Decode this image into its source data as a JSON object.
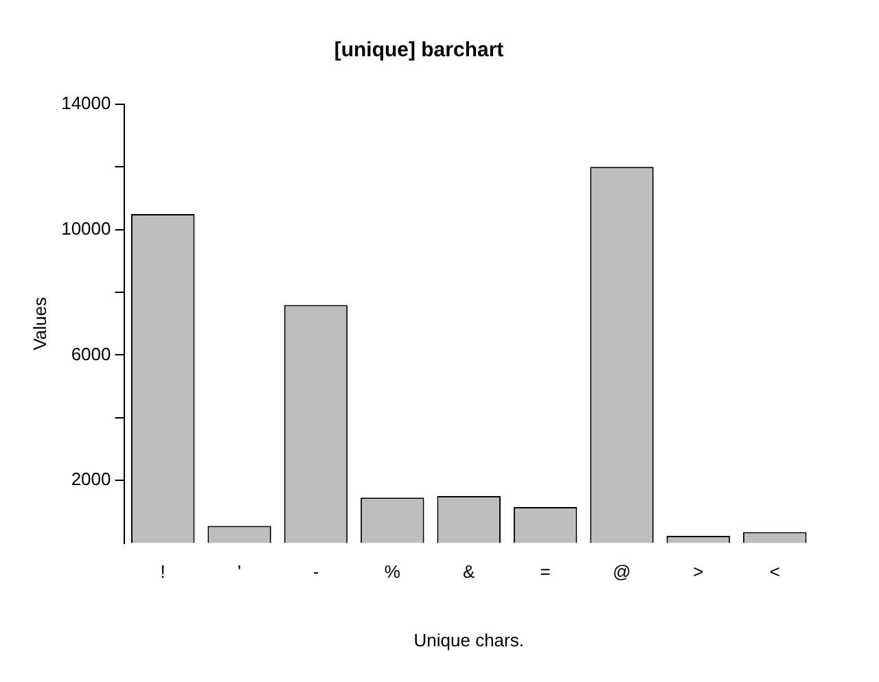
{
  "chart_data": {
    "type": "bar",
    "title": "[unique] barchart",
    "xlabel": "Unique chars.",
    "ylabel": "Values",
    "categories": [
      "!",
      "'",
      "-",
      "%",
      "&",
      "=",
      "@",
      ">",
      "<"
    ],
    "values": [
      10500,
      550,
      7600,
      1450,
      1500,
      1150,
      12000,
      230,
      350
    ],
    "color": "#bebebe",
    "ylim": [
      0,
      14000
    ],
    "yticks": [
      2000,
      {
        "value": 4000,
        "label": null
      },
      6000,
      {
        "value": 8000,
        "label": null
      },
      10000,
      {
        "value": 12000,
        "label": null
      },
      14000
    ],
    "grid": false,
    "legend": false
  }
}
